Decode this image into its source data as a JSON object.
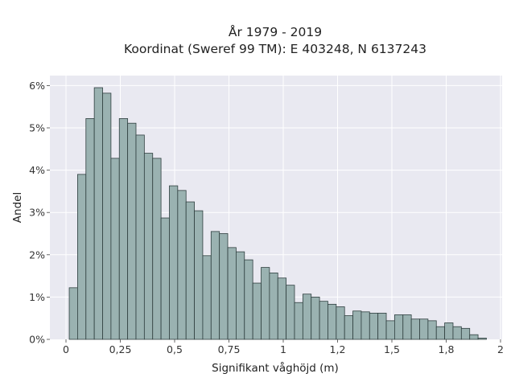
{
  "chart_data": {
    "type": "bar",
    "title": "År 1979 - 2019",
    "subtitle": "Koordinat (Sweref 99 TM): E 403248, N 6137243",
    "xlabel": "Signifikant våghöjd (m)",
    "ylabel": "Andel",
    "xlim": [
      -0.06,
      2.0
    ],
    "ylim": [
      0,
      6.2
    ],
    "grid": true,
    "legend": "none",
    "bin_start": 0.015,
    "bin_width": 0.0384,
    "values": [
      1.22,
      3.9,
      5.22,
      5.95,
      5.82,
      4.28,
      5.22,
      5.11,
      4.83,
      4.4,
      4.28,
      2.87,
      3.63,
      3.52,
      3.25,
      3.04,
      1.98,
      2.55,
      2.5,
      2.17,
      2.07,
      1.88,
      1.33,
      1.7,
      1.57,
      1.45,
      1.28,
      0.87,
      1.07,
      1.0,
      0.9,
      0.83,
      0.77,
      0.56,
      0.67,
      0.65,
      0.62,
      0.62,
      0.44,
      0.58,
      0.58,
      0.48,
      0.48,
      0.44,
      0.3,
      0.39,
      0.3,
      0.26,
      0.11,
      0.03
    ],
    "xticks": [
      {
        "value": 0,
        "label": "0"
      },
      {
        "value": 0.25,
        "label": "0,25"
      },
      {
        "value": 0.5,
        "label": "0,5"
      },
      {
        "value": 0.75,
        "label": "0,75"
      },
      {
        "value": 1,
        "label": "1"
      },
      {
        "value": 1.25,
        "label": "1,2"
      },
      {
        "value": 1.5,
        "label": "1,5"
      },
      {
        "value": 1.75,
        "label": "1,8"
      },
      {
        "value": 2,
        "label": "2"
      }
    ],
    "yticks": [
      {
        "value": 0,
        "label": "0%"
      },
      {
        "value": 1,
        "label": "1%"
      },
      {
        "value": 2,
        "label": "2%"
      },
      {
        "value": 3,
        "label": "3%"
      },
      {
        "value": 4,
        "label": "4%"
      },
      {
        "value": 5,
        "label": "5%"
      },
      {
        "value": 6,
        "label": "6%"
      }
    ],
    "colors": {
      "bar_fill": "#9ab2b1",
      "bar_edge": "#2f3f3f",
      "plot_background": "#e9e9f1",
      "grid": "#ffffff"
    }
  }
}
